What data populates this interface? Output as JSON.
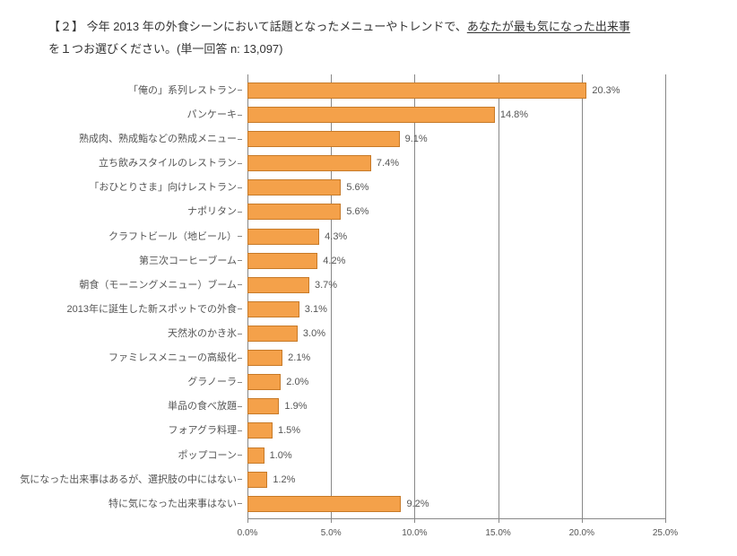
{
  "title": {
    "prefix": "【２】 今年 2013 年の外食シーンにおいて話題となったメニューやトレンドで、",
    "underlined": "あなたが最も気になった出来事",
    "suffix_line2": "を１つお選びください。(単一回答 n: 13,097)"
  },
  "chart": {
    "type": "bar-horizontal",
    "xmax": 25.0,
    "xtick_step": 5.0,
    "x_ticks": [
      "0.0%",
      "5.0%",
      "10.0%",
      "15.0%",
      "20.0%",
      "25.0%"
    ],
    "bar_color": "#f4a14a",
    "bar_border_color": "#c77a28",
    "background_color": "#ffffff",
    "grid_color": "#888888",
    "label_fontsize": 11,
    "tick_fontsize": 10,
    "categories": [
      {
        "label": "「俺の」系列レストラン",
        "value": 20.3
      },
      {
        "label": "パンケーキ",
        "value": 14.8
      },
      {
        "label": "熟成肉、熟成鮨などの熟成メニュー",
        "value": 9.1
      },
      {
        "label": "立ち飲みスタイルのレストラン",
        "value": 7.4
      },
      {
        "label": "「おひとりさま」向けレストラン",
        "value": 5.6
      },
      {
        "label": "ナポリタン",
        "value": 5.6
      },
      {
        "label": "クラフトビール（地ビール）",
        "value": 4.3
      },
      {
        "label": "第三次コーヒーブーム",
        "value": 4.2
      },
      {
        "label": "朝食（モーニングメニュー）ブーム",
        "value": 3.7
      },
      {
        "label": "2013年に誕生した新スポットでの外食",
        "value": 3.1
      },
      {
        "label": "天然氷のかき氷",
        "value": 3.0
      },
      {
        "label": "ファミレスメニューの高級化",
        "value": 2.1
      },
      {
        "label": "グラノーラ",
        "value": 2.0
      },
      {
        "label": "単品の食べ放題",
        "value": 1.9
      },
      {
        "label": "フォアグラ料理",
        "value": 1.5
      },
      {
        "label": "ポップコーン",
        "value": 1.0
      },
      {
        "label": "気になった出来事はあるが、選択肢の中にはない",
        "value": 1.2
      },
      {
        "label": "特に気になった出来事はない",
        "value": 9.2
      }
    ]
  }
}
